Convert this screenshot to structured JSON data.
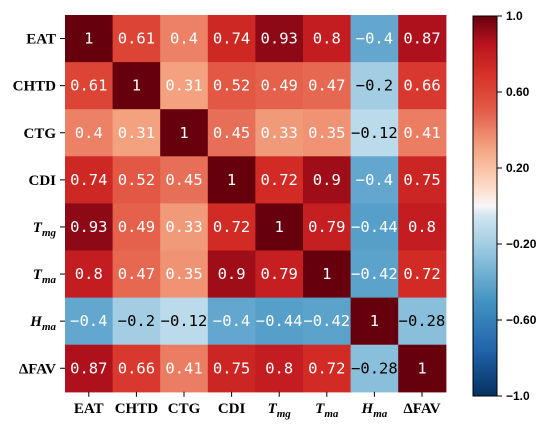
{
  "chart_data": {
    "type": "heatmap",
    "title": "",
    "xlabel": "",
    "ylabel": "",
    "labels": [
      {
        "main": "EAT"
      },
      {
        "main": "CHTD"
      },
      {
        "main": "CTG"
      },
      {
        "main": "CDI"
      },
      {
        "main": "T",
        "sub": "mg"
      },
      {
        "main": "T",
        "sub": "ma"
      },
      {
        "main": "H",
        "sub": "ma"
      },
      {
        "main": "ΔFAV"
      }
    ],
    "values": [
      [
        1,
        0.61,
        0.4,
        0.74,
        0.93,
        0.8,
        -0.4,
        0.87
      ],
      [
        0.61,
        1,
        0.31,
        0.52,
        0.49,
        0.47,
        -0.2,
        0.66
      ],
      [
        0.4,
        0.31,
        1,
        0.45,
        0.33,
        0.35,
        -0.12,
        0.41
      ],
      [
        0.74,
        0.52,
        0.45,
        1,
        0.72,
        0.9,
        -0.4,
        0.75
      ],
      [
        0.93,
        0.49,
        0.33,
        0.72,
        1,
        0.79,
        -0.44,
        0.8
      ],
      [
        0.8,
        0.47,
        0.35,
        0.9,
        0.79,
        1,
        -0.42,
        0.72
      ],
      [
        -0.4,
        -0.2,
        -0.12,
        -0.4,
        -0.44,
        -0.42,
        1,
        -0.28
      ],
      [
        0.87,
        0.66,
        0.41,
        0.75,
        0.8,
        0.72,
        -0.28,
        1
      ]
    ],
    "value_labels": [
      [
        "1",
        "0.61",
        "0.4",
        "0.74",
        "0.93",
        "0.8",
        "−0.4",
        "0.87"
      ],
      [
        "0.61",
        "1",
        "0.31",
        "0.52",
        "0.49",
        "0.47",
        "−0.2",
        "0.66"
      ],
      [
        "0.4",
        "0.31",
        "1",
        "0.45",
        "0.33",
        "0.35",
        "−0.12",
        "0.41"
      ],
      [
        "0.74",
        "0.52",
        "0.45",
        "1",
        "0.72",
        "0.9",
        "−0.4",
        "0.75"
      ],
      [
        "0.93",
        "0.49",
        "0.33",
        "0.72",
        "1",
        "0.79",
        "−0.44",
        "0.8"
      ],
      [
        "0.8",
        "0.47",
        "0.35",
        "0.9",
        "0.79",
        "1",
        "−0.42",
        "0.72"
      ],
      [
        "−0.4",
        "−0.2",
        "−0.12",
        "−0.4",
        "−0.44",
        "−0.42",
        "1",
        "−0.28"
      ],
      [
        "0.87",
        "0.66",
        "0.41",
        "0.75",
        "0.8",
        "0.72",
        "−0.28",
        "1"
      ]
    ],
    "colorbar": {
      "range": [
        -1.0,
        1.0
      ],
      "ticks": [
        1.0,
        0.6,
        0.2,
        -0.2,
        -0.6,
        -1.0
      ],
      "tick_labels": [
        "1.0",
        "0.60",
        "0.20",
        "−0.20",
        "−0.60",
        "−1.0"
      ],
      "colormap": "RdBu_r",
      "placement": "right"
    },
    "grid": false
  }
}
